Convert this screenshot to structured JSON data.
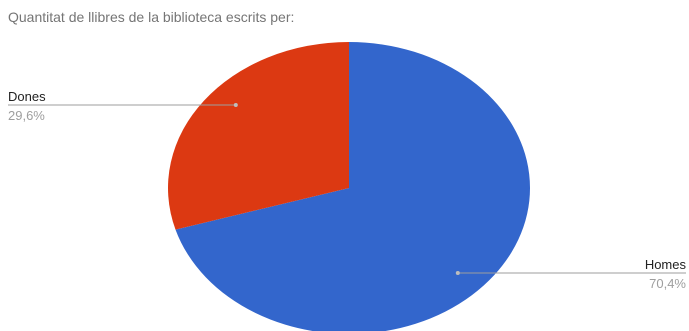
{
  "chart_data": {
    "type": "pie",
    "title": "Quantitat de llibres de la biblioteca escrits per:",
    "slices": [
      {
        "label": "Homes",
        "value": 70.4,
        "display": "70,4%",
        "color": "#3366cc"
      },
      {
        "label": "Dones",
        "value": 29.6,
        "display": "29,6%",
        "color": "#dc3912"
      }
    ],
    "start_angle_deg": 0,
    "direction": "clockwise",
    "labels_outside": true
  }
}
